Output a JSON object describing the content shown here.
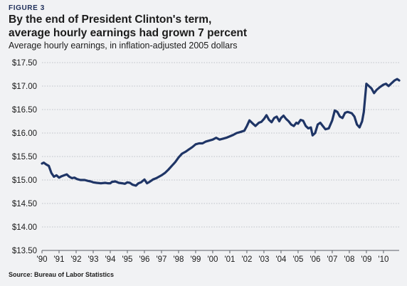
{
  "figure_label": "FIGURE 3",
  "title_line1": "By the end of President Clinton's term,",
  "title_line2": "average hourly earnings had grown 7 percent",
  "subtitle": "Average hourly earnings, in inflation-adjusted 2005 dollars",
  "source": "Source: Bureau of Labor Statistics",
  "colors": {
    "line": "#1f3566",
    "gridline": "#bfc3c8",
    "background": "#f1f2f4"
  },
  "chart_data": {
    "type": "line",
    "title": "By the end of President Clinton's term, average hourly earnings had grown 7 percent",
    "subtitle": "Average hourly earnings, in inflation-adjusted 2005 dollars",
    "xlabel": "",
    "ylabel": "",
    "ylim": [
      13.5,
      17.5
    ],
    "xlim": [
      1990,
      2010.92
    ],
    "grid": "horizontal dotted",
    "yticks": [
      13.5,
      14.0,
      14.5,
      15.0,
      15.5,
      16.0,
      16.5,
      17.0,
      17.5
    ],
    "ytick_labels": [
      "$13.50",
      "$14.00",
      "$14.50",
      "$15.00",
      "$15.50",
      "$16.00",
      "$16.50",
      "$17.00",
      "$17.50"
    ],
    "xticks": [
      1990,
      1991,
      1992,
      1993,
      1994,
      1995,
      1996,
      1997,
      1998,
      1999,
      2000,
      2001,
      2002,
      2003,
      2004,
      2005,
      2006,
      2007,
      2008,
      2009,
      2010
    ],
    "xtick_labels": [
      "'90",
      "'91",
      "'92",
      "'93",
      "'94",
      "'95",
      "'96",
      "'97",
      "'98",
      "'99",
      "'00",
      "'01",
      "'02",
      "'03",
      "'04",
      "'05",
      "'06",
      "'07",
      "'08",
      "'09",
      "'10"
    ],
    "series": [
      {
        "x": [
          1990.0,
          1990.1,
          1990.25,
          1990.4,
          1990.55,
          1990.7,
          1990.85,
          1991.0,
          1991.15,
          1991.3,
          1991.45,
          1991.6,
          1991.75,
          1991.9,
          1992.05,
          1992.25,
          1992.5,
          1992.7,
          1992.85,
          1993.0,
          1993.2,
          1993.45,
          1993.7,
          1993.85,
          1994.0,
          1994.1,
          1994.3,
          1994.5,
          1994.7,
          1994.85,
          1995.0,
          1995.15,
          1995.3,
          1995.5,
          1995.65,
          1995.8,
          1996.0,
          1996.15,
          1996.3,
          1996.5,
          1996.7,
          1996.85,
          1997.0,
          1997.2,
          1997.4,
          1997.6,
          1997.8,
          1998.0,
          1998.2,
          1998.4,
          1998.6,
          1998.8,
          1999.0,
          1999.2,
          1999.4,
          1999.6,
          1999.8,
          2000.0,
          2000.2,
          2000.4,
          2000.6,
          2000.8,
          2001.0,
          2001.2,
          2001.4,
          2001.6,
          2001.85,
          2002.0,
          2002.15,
          2002.35,
          2002.5,
          2002.7,
          2002.85,
          2003.0,
          2003.15,
          2003.3,
          2003.45,
          2003.6,
          2003.75,
          2003.9,
          2004.0,
          2004.15,
          2004.3,
          2004.45,
          2004.6,
          2004.75,
          2004.9,
          2005.0,
          2005.15,
          2005.3,
          2005.45,
          2005.6,
          2005.75,
          2005.85,
          2006.0,
          2006.15,
          2006.3,
          2006.45,
          2006.6,
          2006.8,
          2007.0,
          2007.15,
          2007.3,
          2007.45,
          2007.6,
          2007.75,
          2007.9,
          2008.0,
          2008.15,
          2008.3,
          2008.45,
          2008.6,
          2008.75,
          2008.85,
          2008.95,
          2009.0,
          2009.15,
          2009.3,
          2009.45,
          2009.6,
          2009.8,
          2010.0,
          2010.15,
          2010.3,
          2010.5,
          2010.65,
          2010.8,
          2010.92
        ],
        "y": [
          15.35,
          15.37,
          15.33,
          15.3,
          15.15,
          15.07,
          15.1,
          15.05,
          15.08,
          15.1,
          15.12,
          15.07,
          15.04,
          15.05,
          15.02,
          15.0,
          15.0,
          14.98,
          14.97,
          14.95,
          14.94,
          14.93,
          14.94,
          14.93,
          14.93,
          14.96,
          14.97,
          14.94,
          14.93,
          14.92,
          14.95,
          14.94,
          14.9,
          14.88,
          14.93,
          14.95,
          15.01,
          14.93,
          14.96,
          15.01,
          15.04,
          15.07,
          15.1,
          15.15,
          15.22,
          15.3,
          15.38,
          15.48,
          15.56,
          15.6,
          15.65,
          15.7,
          15.76,
          15.78,
          15.78,
          15.82,
          15.84,
          15.86,
          15.9,
          15.86,
          15.88,
          15.9,
          15.93,
          15.96,
          16.0,
          16.02,
          16.05,
          16.15,
          16.27,
          16.2,
          16.15,
          16.22,
          16.24,
          16.3,
          16.38,
          16.28,
          16.23,
          16.32,
          16.35,
          16.25,
          16.32,
          16.37,
          16.3,
          16.25,
          16.18,
          16.15,
          16.22,
          16.2,
          16.28,
          16.26,
          16.15,
          16.1,
          16.12,
          15.95,
          16.0,
          16.18,
          16.22,
          16.15,
          16.08,
          16.1,
          16.27,
          16.48,
          16.45,
          16.35,
          16.32,
          16.43,
          16.45,
          16.44,
          16.42,
          16.35,
          16.18,
          16.12,
          16.25,
          16.45,
          16.85,
          17.05,
          17.0,
          16.95,
          16.85,
          16.92,
          16.98,
          17.03,
          17.05,
          17.0,
          17.07,
          17.12,
          17.15,
          17.12
        ]
      }
    ]
  }
}
